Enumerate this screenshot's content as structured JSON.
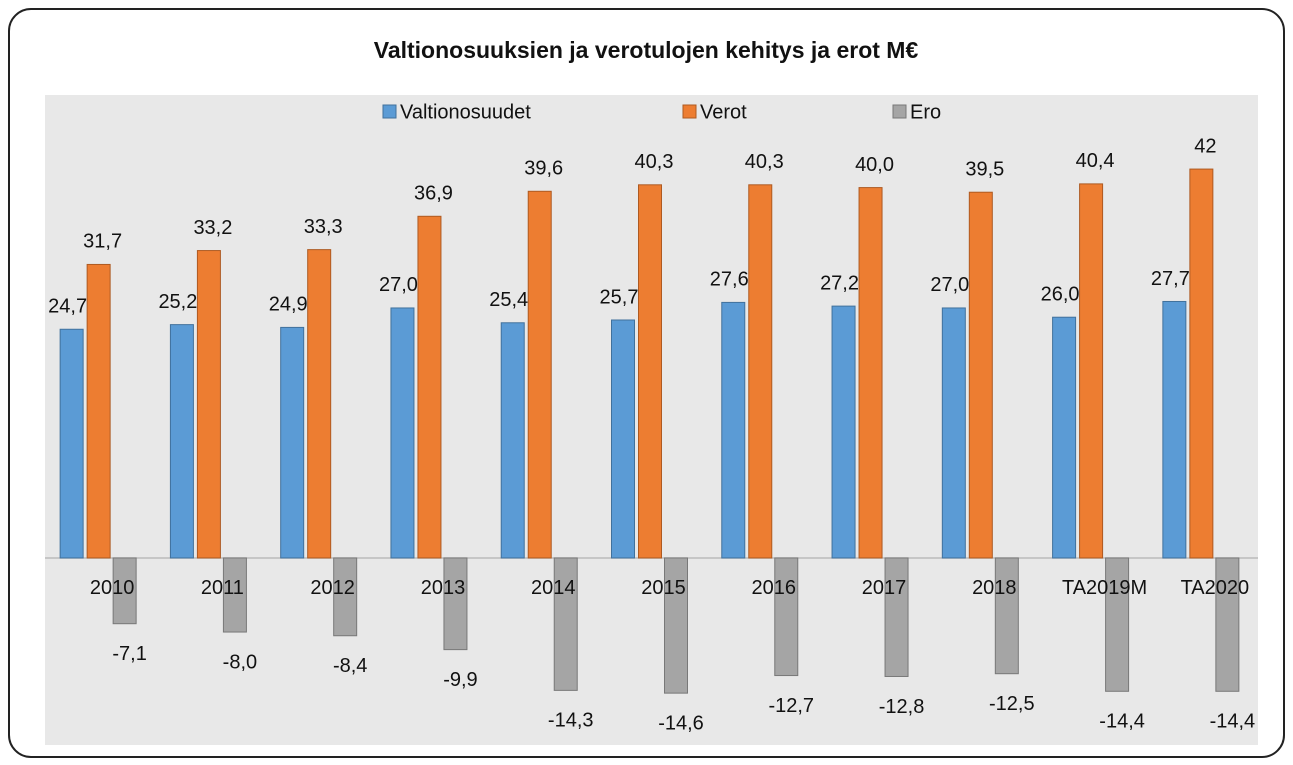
{
  "chart_data": {
    "type": "bar",
    "title": "Valtionosuuksien ja verotulojen kehitys ja erot M€",
    "categories": [
      "2010",
      "2011",
      "2012",
      "2013",
      "2014",
      "2015",
      "2016",
      "2017",
      "2018",
      "TA2019M",
      "TA2020"
    ],
    "series": [
      {
        "name": "Valtionosuudet",
        "color": "#5b9bd5",
        "values": [
          24.7,
          25.2,
          24.9,
          27.0,
          25.4,
          25.7,
          27.6,
          27.2,
          27.0,
          26.0,
          27.7
        ],
        "value_labels": [
          "24,7",
          "25,2",
          "24,9",
          "27,0",
          "25,4",
          "25,7",
          "27,6",
          "27,2",
          "27,0",
          "26,0",
          "27,7"
        ]
      },
      {
        "name": "Verot",
        "color": "#ed7d31",
        "values": [
          31.7,
          33.2,
          33.3,
          36.9,
          39.6,
          40.3,
          40.3,
          40.0,
          39.5,
          40.4,
          42
        ],
        "value_labels": [
          "31,7",
          "33,2",
          "33,3",
          "36,9",
          "39,6",
          "40,3",
          "40,3",
          "40,0",
          "39,5",
          "40,4",
          "42"
        ]
      },
      {
        "name": "Ero",
        "color": "#a5a5a5",
        "values": [
          -7.1,
          -8.0,
          -8.4,
          -9.9,
          -14.3,
          -14.6,
          -12.7,
          -12.8,
          -12.5,
          -14.4,
          -14.4
        ],
        "value_labels": [
          "-7,1",
          "-8,0",
          "-8,4",
          "-9,9",
          "-14,3",
          "-14,6",
          "-12,7",
          "-12,8",
          "-12,5",
          "-14,4",
          "-14,4"
        ]
      }
    ],
    "ylim": [
      -20.2,
      50
    ],
    "legend": "top"
  }
}
